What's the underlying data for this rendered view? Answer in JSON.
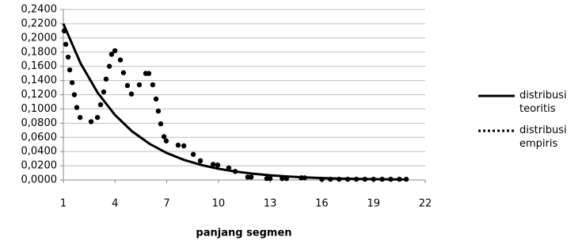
{
  "chart_data": {
    "type": "scatter",
    "x_label": "panjang segmen",
    "xlim": [
      1,
      22
    ],
    "xticks": [
      1,
      4,
      7,
      10,
      13,
      16,
      19,
      22
    ],
    "ylim": [
      0,
      0.24
    ],
    "yticks": [
      {
        "value": 0,
        "label": "0,0000"
      },
      {
        "value": 0.02,
        "label": "0,0200"
      },
      {
        "value": 0.04,
        "label": "0,0400"
      },
      {
        "value": 0.06,
        "label": "0,0600"
      },
      {
        "value": 0.08,
        "label": "0,0800"
      },
      {
        "value": 0.1,
        "label": "0,1000"
      },
      {
        "value": 0.12,
        "label": "0,1200"
      },
      {
        "value": 0.14,
        "label": "0,1400"
      },
      {
        "value": 0.16,
        "label": "0,1600"
      },
      {
        "value": 0.18,
        "label": "0,1800"
      },
      {
        "value": 0.2,
        "label": "0,2000"
      },
      {
        "value": 0.22,
        "label": "0,2200"
      },
      {
        "value": 0.24,
        "label": "0,2400"
      }
    ],
    "grid": true,
    "legend": "right",
    "series": [
      {
        "name": "distribusi teoritis",
        "mode": "line",
        "color": "#000000",
        "x": [
          1,
          2,
          3,
          4,
          5,
          6,
          7,
          8,
          9,
          10,
          11,
          12,
          13,
          14,
          15,
          16,
          17,
          18,
          19,
          20,
          21
        ],
        "values": [
          0.22,
          0.1642,
          0.1225,
          0.0914,
          0.0682,
          0.0509,
          0.0379,
          0.0283,
          0.0211,
          0.0158,
          0.0118,
          0.0088,
          0.0065,
          0.0049,
          0.0036,
          0.0027,
          0.002,
          0.0015,
          0.0011,
          0.0008,
          0.0006
        ]
      },
      {
        "name": "distribusi empiris",
        "mode": "markers",
        "color": "#000000",
        "x": [
          1.05,
          1.14,
          1.28,
          1.37,
          1.51,
          1.64,
          1.78,
          1.97,
          2.61,
          2.98,
          3.16,
          3.34,
          3.48,
          3.67,
          3.8,
          3.99,
          4.31,
          4.49,
          4.72,
          4.95,
          5.41,
          5.78,
          5.96,
          6.19,
          6.38,
          6.51,
          6.65,
          6.84,
          6.97,
          7.66,
          7.99,
          8.54,
          8.95,
          9.69,
          9.96,
          10.6,
          10.97,
          11.7,
          11.9,
          12.8,
          13.0,
          13.7,
          13.95,
          14.8,
          15.0,
          16.0,
          16.5,
          17.0,
          17.5,
          18.0,
          18.5,
          19.0,
          19.5,
          20.0,
          20.5,
          20.9
        ],
        "values": [
          0.21,
          0.191,
          0.173,
          0.155,
          0.137,
          0.12,
          0.102,
          0.088,
          0.082,
          0.088,
          0.106,
          0.124,
          0.142,
          0.16,
          0.177,
          0.182,
          0.169,
          0.151,
          0.133,
          0.121,
          0.134,
          0.15,
          0.15,
          0.134,
          0.114,
          0.097,
          0.079,
          0.061,
          0.055,
          0.049,
          0.048,
          0.036,
          0.027,
          0.022,
          0.021,
          0.017,
          0.012,
          0.004,
          0.004,
          0.002,
          0.002,
          0.002,
          0.002,
          0.003,
          0.003,
          0.001,
          0.001,
          0.001,
          0.001,
          0.001,
          0.001,
          0.001,
          0.001,
          0.001,
          0.001,
          0.001
        ]
      }
    ]
  }
}
